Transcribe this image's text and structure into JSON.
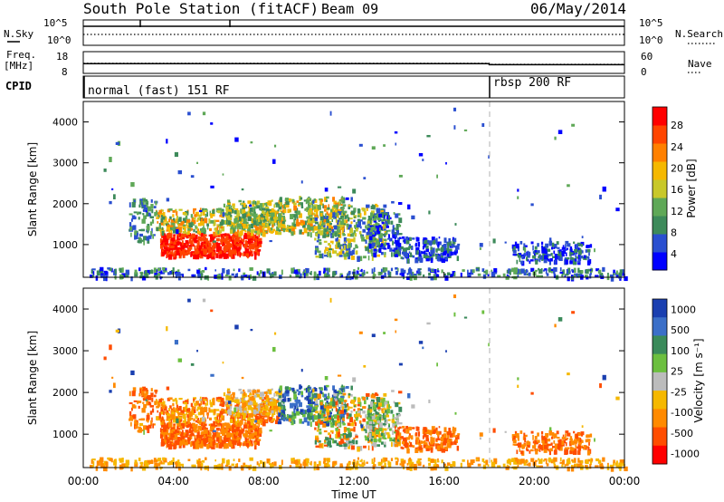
{
  "header": {
    "station": "South Pole Station (fitACF)",
    "beam": "Beam 09",
    "date": "06/May/2014"
  },
  "side_labels": {
    "nsky": "N.Sky",
    "nsearch": "N.Search",
    "freq": "Freq.",
    "freq_unit": "[MHz]",
    "nave": "Nave",
    "cpid": "CPID"
  },
  "cpid_blocks": [
    {
      "label": "normal (fast) 151 RF",
      "start_hour": 0
    },
    {
      "label": "rbsp 200 RF",
      "start_hour": 18
    }
  ],
  "colors": {
    "power_scale": [
      "#0000ff",
      "#2a4fd0",
      "#3d8a5a",
      "#5fa857",
      "#c8c82a",
      "#f5b800",
      "#ff8000",
      "#ff4500",
      "#ff0000"
    ],
    "velocity_scale": [
      "#1a3fb0",
      "#3b6fc8",
      "#3a8a5a",
      "#6cbf3f",
      "#bcbcbc",
      "#f5b800",
      "#ff8a00",
      "#ff4d00",
      "#ff0000"
    ]
  },
  "chart_data": [
    {
      "type": "line",
      "name": "noise-panel",
      "left_axis": {
        "label": "N.Sky",
        "ticks": [
          "10^5",
          "10^0"
        ]
      },
      "right_axis": {
        "label": "N.Search",
        "ticks": [
          "10^5",
          "10^0"
        ]
      },
      "x_range_hours": [
        0,
        24
      ]
    },
    {
      "type": "line",
      "name": "frequency-panel",
      "left_axis": {
        "label": "Freq. [MHz]",
        "ticks": [
          18,
          8
        ],
        "ylim": [
          8,
          18
        ]
      },
      "right_axis": {
        "label": "Nave",
        "ticks": [
          60,
          0
        ],
        "ylim": [
          0,
          60
        ]
      },
      "series": [
        {
          "name": "Freq.",
          "x": [
            0,
            18,
            18,
            24
          ],
          "y": [
            12.5,
            12.5,
            12.0,
            12.0
          ]
        },
        {
          "name": "Nave",
          "x": [
            0,
            18,
            18,
            24
          ],
          "y": [
            28,
            28,
            25,
            25
          ]
        }
      ],
      "x_range_hours": [
        0,
        24
      ]
    },
    {
      "type": "heatmap",
      "name": "power-panel",
      "ylabel": "Slant Range [km]",
      "ylim": [
        200,
        4500
      ],
      "yticks": [
        1000,
        2000,
        3000,
        4000
      ],
      "x_range_hours": [
        0,
        24
      ],
      "colorbar": {
        "label": "Power [dB]",
        "ticks": [
          4,
          8,
          12,
          16,
          20,
          24,
          28
        ]
      }
    },
    {
      "type": "heatmap",
      "name": "velocity-panel",
      "ylabel": "Slant Range [km]",
      "ylim": [
        200,
        4500
      ],
      "yticks": [
        1000,
        2000,
        3000,
        4000
      ],
      "xlabel": "Time UT",
      "xticks": [
        "00:00",
        "04:00",
        "08:00",
        "12:00",
        "16:00",
        "20:00",
        "00:00"
      ],
      "x_range_hours": [
        0,
        24
      ],
      "colorbar": {
        "label": "Velocity [m s⁻¹]",
        "ticks": [
          "1000",
          "500",
          "100",
          "25",
          "-25",
          "-100",
          "-500",
          "-1000"
        ]
      }
    }
  ]
}
